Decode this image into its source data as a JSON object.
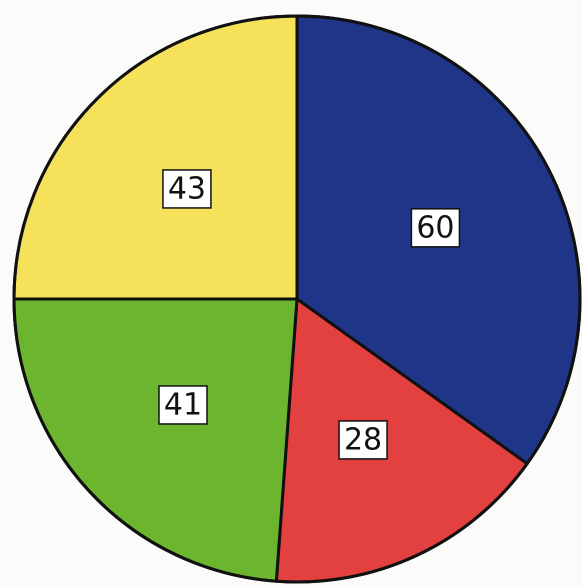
{
  "chart_data": {
    "type": "pie",
    "values": [
      60,
      28,
      41,
      43
    ],
    "colors": [
      "#1f3588",
      "#e2413f",
      "#6cb52f",
      "#f6e15a"
    ]
  }
}
